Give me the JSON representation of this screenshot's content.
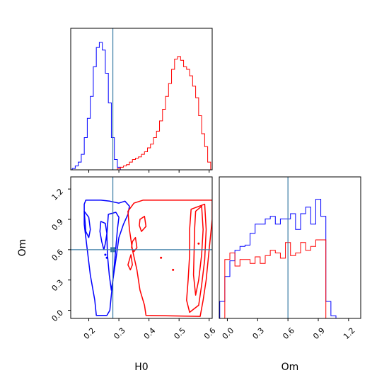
{
  "chart_data": [
    {
      "type": "histogram",
      "panel": "H0 marginal",
      "xlim": [
        0.14,
        0.61
      ],
      "truth": 0.28,
      "series": [
        {
          "color": "#0000ff",
          "bins": [
            0.15,
            0.16,
            0.17,
            0.18,
            0.19,
            0.2,
            0.21,
            0.22,
            0.23,
            0.24,
            0.25,
            0.26,
            0.27,
            0.28,
            0.29,
            0.3,
            0.31
          ],
          "counts": [
            0.01,
            0.03,
            0.06,
            0.12,
            0.25,
            0.4,
            0.57,
            0.8,
            0.95,
            0.99,
            0.93,
            0.75,
            0.52,
            0.25,
            0.08,
            0.02,
            0.0
          ]
        },
        {
          "color": "#ff0000",
          "bins": [
            0.3,
            0.31,
            0.32,
            0.33,
            0.34,
            0.35,
            0.36,
            0.37,
            0.38,
            0.39,
            0.4,
            0.41,
            0.42,
            0.43,
            0.44,
            0.45,
            0.46,
            0.47,
            0.48,
            0.49,
            0.5,
            0.51,
            0.52,
            0.53,
            0.54,
            0.55,
            0.56,
            0.57,
            0.58,
            0.59,
            0.6
          ],
          "counts": [
            0.01,
            0.02,
            0.03,
            0.04,
            0.06,
            0.08,
            0.09,
            0.1,
            0.12,
            0.14,
            0.17,
            0.2,
            0.25,
            0.3,
            0.38,
            0.47,
            0.57,
            0.67,
            0.78,
            0.86,
            0.88,
            0.85,
            0.8,
            0.78,
            0.73,
            0.65,
            0.56,
            0.42,
            0.28,
            0.18,
            0.06
          ]
        }
      ]
    },
    {
      "type": "contour",
      "panel": "H0 vs Om",
      "xlabel": "H0",
      "ylabel": "Om",
      "xlim": [
        0.14,
        0.61
      ],
      "ylim": [
        -0.08,
        1.32
      ],
      "xticks": [
        "0.2",
        "0.3",
        "0.4",
        "0.5",
        "0.6"
      ],
      "yticks": [
        "0.0",
        "0.3",
        "0.6",
        "0.9",
        "1.2"
      ],
      "truth": [
        0.28,
        0.6
      ],
      "series": [
        {
          "color": "#0000ff",
          "contours": [
            [
              [
                0.185,
                1.05
              ],
              [
                0.19,
                1.09
              ],
              [
                0.24,
                1.09
              ],
              [
                0.27,
                1.08
              ],
              [
                0.3,
                1.06
              ],
              [
                0.32,
                1.08
              ],
              [
                0.335,
                1.03
              ],
              [
                0.33,
                0.95
              ],
              [
                0.315,
                0.85
              ],
              [
                0.3,
                0.72
              ],
              [
                0.29,
                0.5
              ],
              [
                0.28,
                0.3
              ],
              [
                0.275,
                0.15
              ],
              [
                0.27,
                0.0
              ],
              [
                0.26,
                -0.05
              ],
              [
                0.225,
                -0.05
              ],
              [
                0.22,
                0.1
              ],
              [
                0.205,
                0.35
              ],
              [
                0.195,
                0.6
              ],
              [
                0.185,
                0.85
              ],
              [
                0.185,
                1.05
              ]
            ],
            [
              [
                0.265,
                0.95
              ],
              [
                0.29,
                0.97
              ],
              [
                0.3,
                0.92
              ],
              [
                0.295,
                0.8
              ],
              [
                0.29,
                0.62
              ],
              [
                0.285,
                0.45
              ],
              [
                0.28,
                0.3
              ],
              [
                0.275,
                0.2
              ],
              [
                0.268,
                0.35
              ],
              [
                0.262,
                0.55
              ],
              [
                0.26,
                0.75
              ],
              [
                0.265,
                0.95
              ]
            ],
            [
              [
                0.24,
                0.88
              ],
              [
                0.255,
                0.86
              ],
              [
                0.26,
                0.76
              ],
              [
                0.255,
                0.66
              ],
              [
                0.25,
                0.6
              ],
              [
                0.243,
                0.68
              ],
              [
                0.237,
                0.78
              ],
              [
                0.24,
                0.88
              ]
            ],
            [
              [
                0.185,
                0.98
              ],
              [
                0.2,
                0.92
              ],
              [
                0.205,
                0.8
              ],
              [
                0.2,
                0.72
              ],
              [
                0.19,
                0.78
              ],
              [
                0.185,
                0.98
              ]
            ]
          ],
          "points": [
            [
              0.28,
              0.6
            ],
            [
              0.255,
              0.55
            ],
            [
              0.26,
              0.52
            ]
          ]
        },
        {
          "color": "#ff0000",
          "contours": [
            [
              [
                0.33,
                0.98
              ],
              [
                0.35,
                1.06
              ],
              [
                0.38,
                1.09
              ],
              [
                0.61,
                1.09
              ],
              [
                0.61,
                0.9
              ],
              [
                0.6,
                0.6
              ],
              [
                0.59,
                0.3
              ],
              [
                0.58,
                0.1
              ],
              [
                0.57,
                -0.06
              ],
              [
                0.39,
                -0.05
              ],
              [
                0.385,
                0.05
              ],
              [
                0.37,
                0.2
              ],
              [
                0.36,
                0.4
              ],
              [
                0.345,
                0.6
              ],
              [
                0.335,
                0.8
              ],
              [
                0.33,
                0.98
              ]
            ],
            [
              [
                0.54,
                1.0
              ],
              [
                0.585,
                1.05
              ],
              [
                0.59,
                0.8
              ],
              [
                0.585,
                0.5
              ],
              [
                0.575,
                0.25
              ],
              [
                0.565,
                0.05
              ],
              [
                0.535,
                -0.02
              ],
              [
                0.525,
                0.1
              ],
              [
                0.53,
                0.3
              ],
              [
                0.535,
                0.55
              ],
              [
                0.535,
                0.8
              ],
              [
                0.54,
                1.0
              ]
            ],
            [
              [
                0.555,
                0.98
              ],
              [
                0.575,
                1.03
              ],
              [
                0.58,
                0.8
              ],
              [
                0.575,
                0.55
              ],
              [
                0.565,
                0.3
              ],
              [
                0.555,
                0.15
              ],
              [
                0.548,
                0.35
              ],
              [
                0.55,
                0.6
              ],
              [
                0.552,
                0.82
              ],
              [
                0.555,
                0.98
              ]
            ],
            [
              [
                0.37,
                0.9
              ],
              [
                0.385,
                0.93
              ],
              [
                0.39,
                0.83
              ],
              [
                0.375,
                0.78
              ],
              [
                0.368,
                0.84
              ],
              [
                0.37,
                0.9
              ]
            ],
            [
              [
                0.345,
                0.68
              ],
              [
                0.355,
                0.72
              ],
              [
                0.36,
                0.62
              ],
              [
                0.35,
                0.58
              ],
              [
                0.342,
                0.62
              ],
              [
                0.345,
                0.68
              ]
            ],
            [
              [
                0.34,
                0.55
              ],
              [
                0.345,
                0.45
              ],
              [
                0.338,
                0.4
              ],
              [
                0.33,
                0.45
              ],
              [
                0.34,
                0.55
              ]
            ]
          ],
          "points": [
            [
              0.565,
              0.66
            ],
            [
              0.44,
              0.52
            ],
            [
              0.48,
              0.4
            ]
          ]
        }
      ]
    },
    {
      "type": "histogram",
      "panel": "Om marginal",
      "xlabel": "Om",
      "xlim": [
        -0.08,
        1.32
      ],
      "xticks": [
        "0.0",
        "0.3",
        "0.6",
        "0.9",
        "1.2"
      ],
      "truth": 0.6,
      "series": [
        {
          "color": "#0000ff",
          "bins": [
            -0.05,
            0.0,
            0.05,
            0.1,
            0.15,
            0.2,
            0.25,
            0.3,
            0.35,
            0.4,
            0.45,
            0.5,
            0.55,
            0.6,
            0.65,
            0.7,
            0.75,
            0.8,
            0.85,
            0.9,
            0.95,
            1.0,
            1.05,
            1.1,
            1.15
          ],
          "counts": [
            0.13,
            0.32,
            0.44,
            0.52,
            0.55,
            0.56,
            0.65,
            0.72,
            0.72,
            0.76,
            0.78,
            0.72,
            0.76,
            0.76,
            0.8,
            0.68,
            0.8,
            0.85,
            0.72,
            0.91,
            0.78,
            0.13,
            0.02,
            0.0,
            0.0
          ]
        },
        {
          "color": "#ff0000",
          "bins": [
            0.0,
            0.05,
            0.1,
            0.15,
            0.2,
            0.25,
            0.3,
            0.35,
            0.4,
            0.45,
            0.5,
            0.55,
            0.6,
            0.65,
            0.7,
            0.75,
            0.8,
            0.85,
            0.9,
            0.95,
            1.0
          ],
          "counts": [
            0.45,
            0.5,
            0.4,
            0.45,
            0.45,
            0.42,
            0.47,
            0.42,
            0.48,
            0.52,
            0.5,
            0.46,
            0.58,
            0.48,
            0.5,
            0.58,
            0.52,
            0.55,
            0.6,
            0.6,
            0.0
          ]
        }
      ]
    }
  ]
}
